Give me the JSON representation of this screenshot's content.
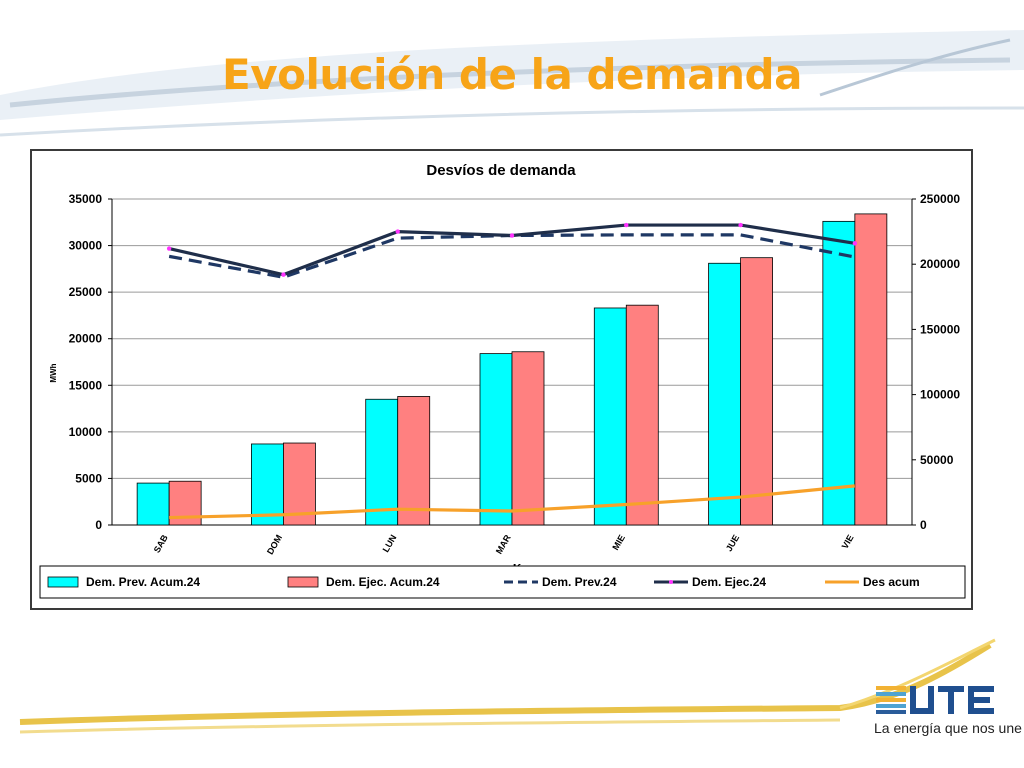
{
  "slide": {
    "title": "Evolución de la demanda",
    "title_color": "#f7a418",
    "brand": {
      "tagline": "La energía que nos une",
      "logo_icon": "ute-logo-icon",
      "logo_text": "UTE"
    }
  },
  "chart_data": {
    "type": "bar",
    "title": "Desvíos de demanda",
    "xlabel": "días",
    "ylabel": "MWh",
    "categories": [
      "SAB",
      "DOM",
      "LUN",
      "MAR",
      "MIE",
      "JUE",
      "VIE"
    ],
    "ylim": [
      0,
      35000
    ],
    "y_ticks": [
      "0",
      "5000",
      "10000",
      "15000",
      "20000",
      "25000",
      "30000",
      "35000"
    ],
    "y2lim": [
      0,
      250000
    ],
    "y2_ticks": [
      "0",
      "50000",
      "100000",
      "150000",
      "200000",
      "250000"
    ],
    "grid": true,
    "legend_position": "bottom",
    "series": [
      {
        "name": "Dem. Prev. Acum.24",
        "kind": "bar",
        "axis": "left",
        "color": "#00ffff",
        "values": [
          4500,
          8700,
          13500,
          18400,
          23300,
          28100,
          32600
        ]
      },
      {
        "name": "Dem. Ejec. Acum.24",
        "kind": "bar",
        "axis": "left",
        "color": "#ff8080",
        "values": [
          4700,
          8800,
          13800,
          18600,
          23600,
          28700,
          33400
        ]
      },
      {
        "name": "Dem. Prev.24",
        "kind": "line",
        "style": "dashed",
        "axis": "right",
        "color": "#1f3864",
        "values": [
          206000,
          190000,
          220000,
          222000,
          222500,
          222500,
          205500
        ]
      },
      {
        "name": "Dem. Ejec.24",
        "kind": "line",
        "style": "solid",
        "axis": "right",
        "color": "#1f2e4a",
        "marker_color": "#ff33ff",
        "values": [
          212000,
          192000,
          225000,
          222000,
          230000,
          230000,
          216000
        ]
      },
      {
        "name": "Des acum",
        "kind": "line",
        "style": "solid",
        "axis": "left",
        "color": "#f7a12a",
        "values": [
          800,
          1100,
          1700,
          1500,
          2200,
          3000,
          4200
        ]
      }
    ]
  }
}
